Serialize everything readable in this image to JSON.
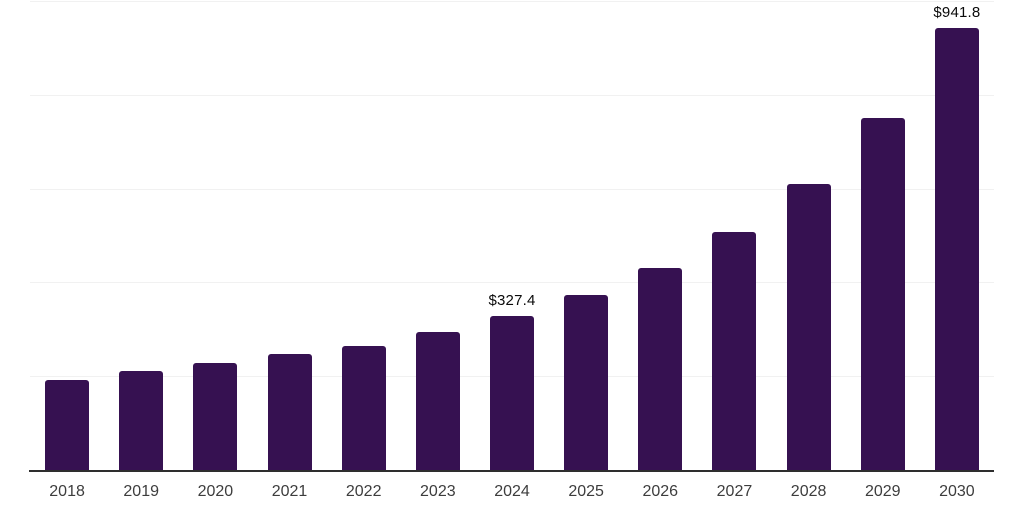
{
  "chart_data": {
    "type": "bar",
    "categories": [
      "2018",
      "2019",
      "2020",
      "2021",
      "2022",
      "2023",
      "2024",
      "2025",
      "2026",
      "2027",
      "2028",
      "2029",
      "2030"
    ],
    "values": [
      192,
      212,
      229,
      247,
      264,
      294,
      327.4,
      374,
      431,
      508,
      610,
      751,
      941.8
    ],
    "data_labels": [
      null,
      null,
      null,
      null,
      null,
      null,
      "$327.4",
      null,
      null,
      null,
      null,
      null,
      "$941.8"
    ],
    "title": "",
    "xlabel": "",
    "ylabel": "",
    "ylim": [
      0,
      1000
    ],
    "yticks": [
      200,
      400,
      600,
      800,
      1000
    ],
    "ytick_labels_visible": false,
    "legend": "none",
    "grid": "horizontal",
    "colors": {
      "bar": "#361151",
      "gridline": "#f1f1f1",
      "axis_line": "#2e2e2e",
      "tick_label": "#3d3d3d",
      "value_label": "#0a0a0a",
      "background": "#ffffff"
    }
  }
}
